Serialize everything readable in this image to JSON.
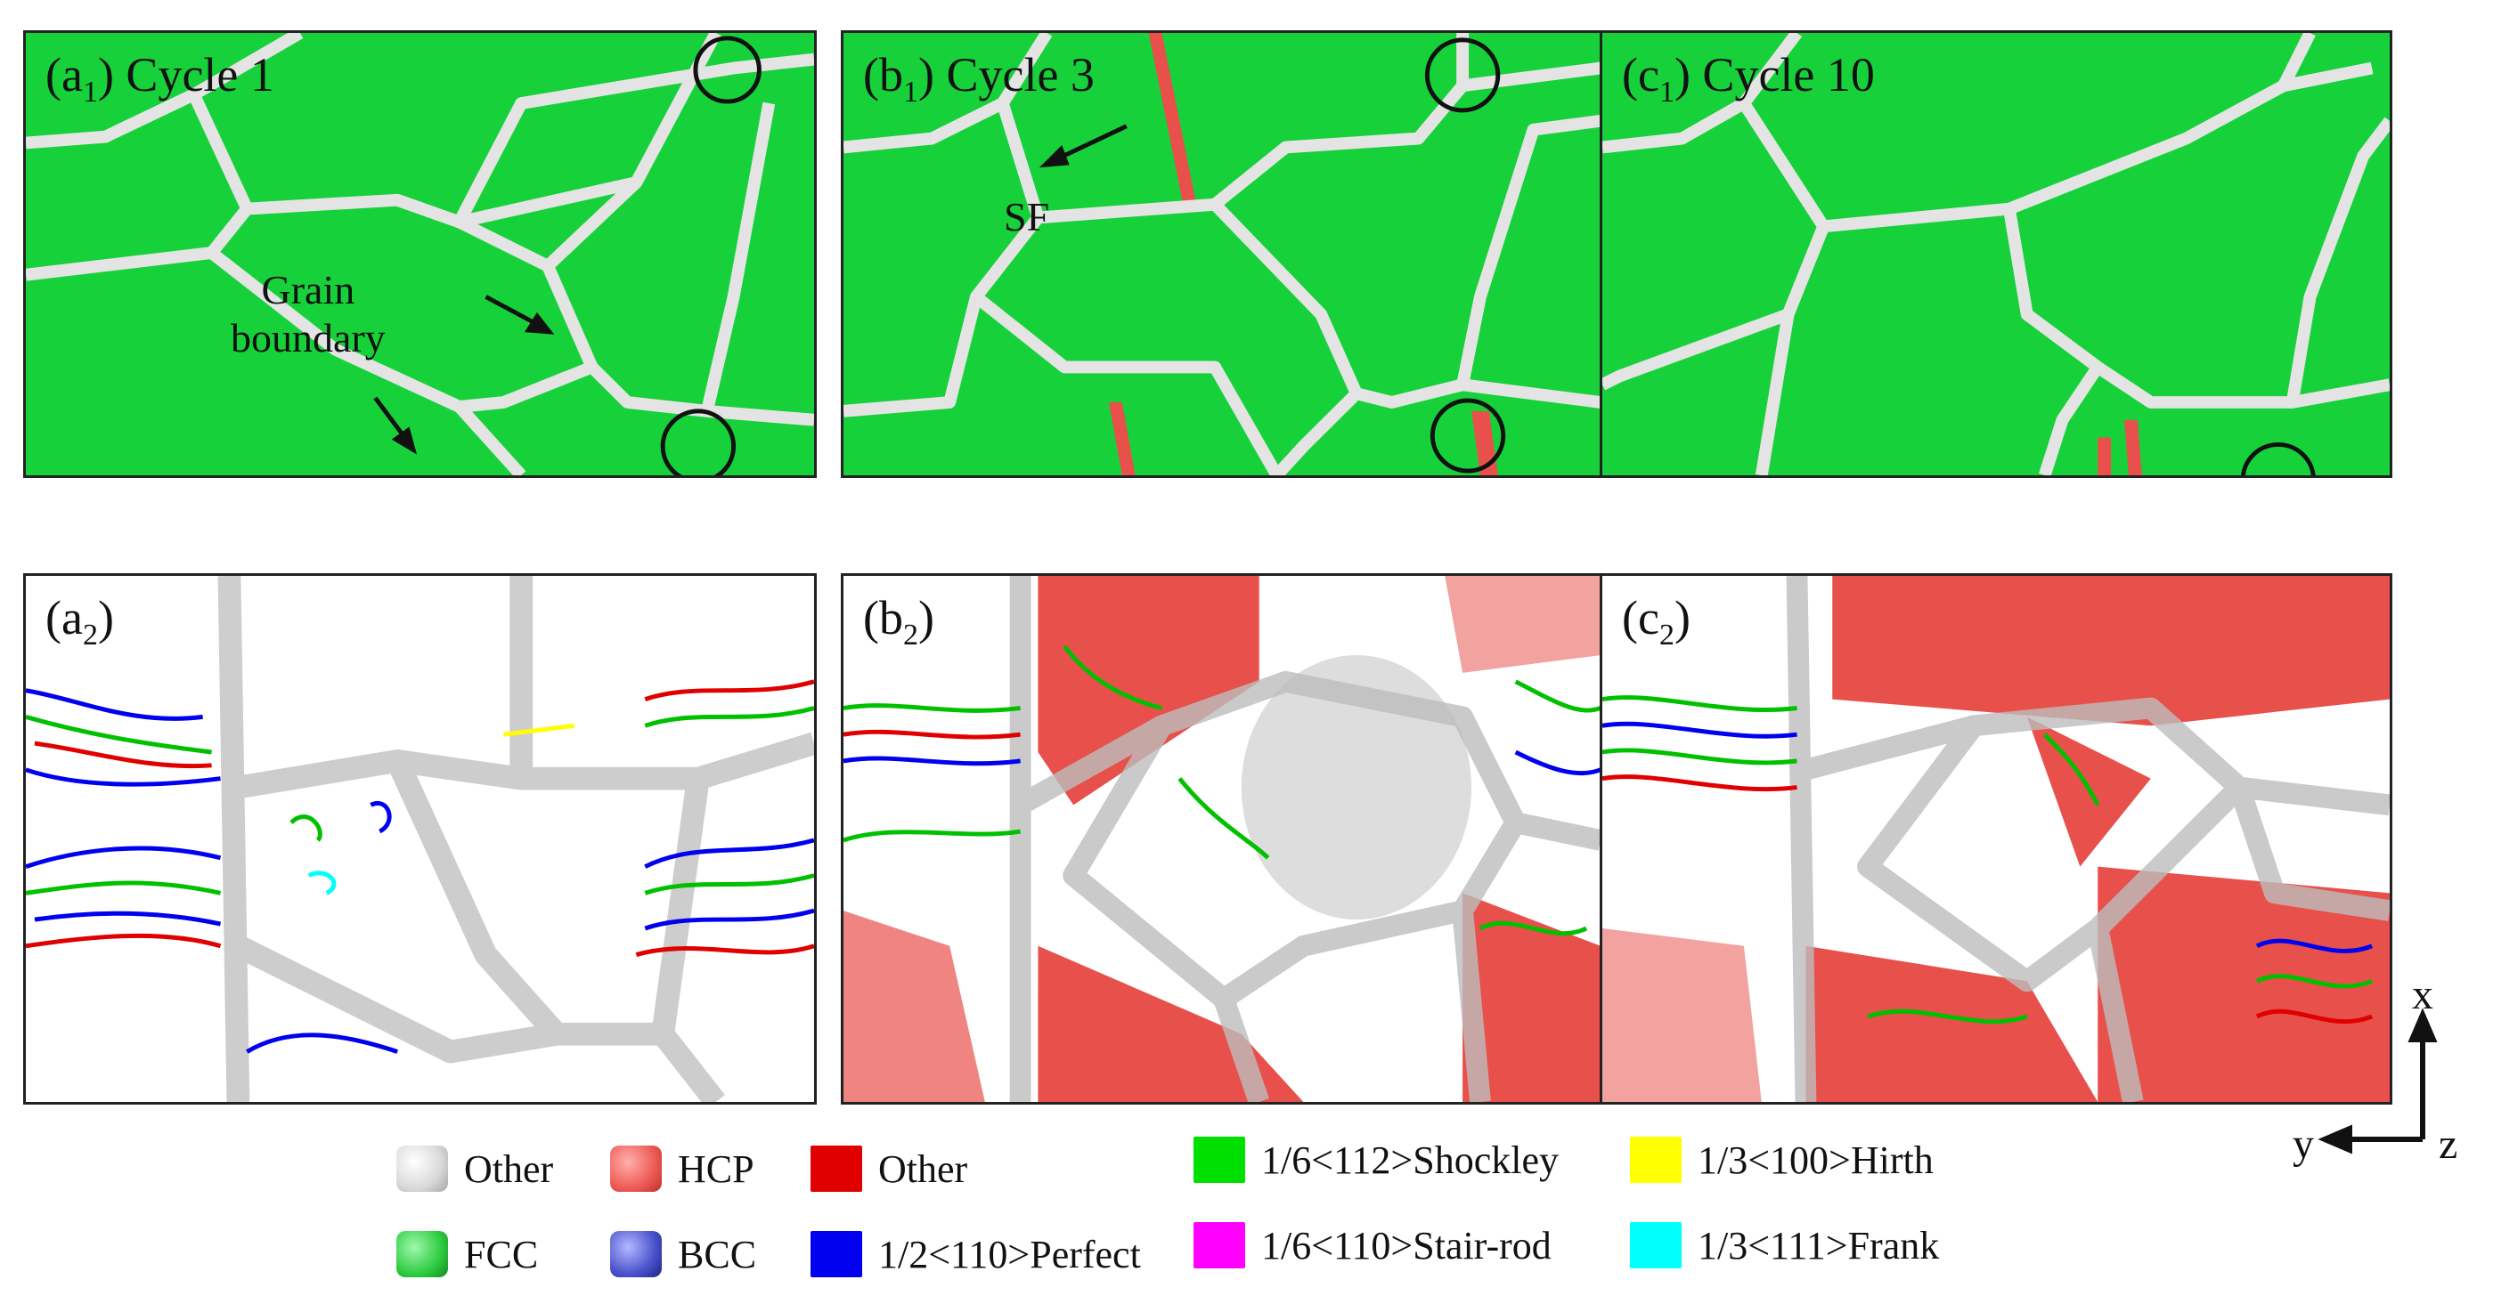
{
  "panels": {
    "a1": {
      "letter": "(a",
      "sub": "1",
      "tail": ") Cycle 1"
    },
    "b1": {
      "letter": "(b",
      "sub": "1",
      "tail": ") Cycle 3"
    },
    "c1": {
      "letter": "(c",
      "sub": "1",
      "tail": ") Cycle 10"
    },
    "a2": {
      "letter": "(a",
      "sub": "2",
      "tail": ")"
    },
    "b2": {
      "letter": "(b",
      "sub": "2",
      "tail": ")"
    },
    "c2": {
      "letter": "(c",
      "sub": "2",
      "tail": ")"
    }
  },
  "annotations": {
    "grain_boundary_line1": "Grain",
    "grain_boundary_line2": "boundary",
    "stacking_fault": "SF"
  },
  "legend": {
    "structures": [
      {
        "label": "Other",
        "color": "#d9d9d9"
      },
      {
        "label": "HCP",
        "color": "#ee5a55"
      },
      {
        "label": "FCC",
        "color": "#2ecc40"
      },
      {
        "label": "BCC",
        "color": "#4a52cc"
      }
    ],
    "dislocations": [
      {
        "label": "Other",
        "color": "#e00000"
      },
      {
        "label": "1/2<110>Perfect",
        "color": "#0000ee"
      },
      {
        "label": "1/6<112>Shockley",
        "color": "#00e000"
      },
      {
        "label": "1/6<110>Stair-rod",
        "color": "#ff00ff"
      },
      {
        "label": "1/3<100>Hirth",
        "color": "#ffff00"
      },
      {
        "label": "1/3<111>Frank",
        "color": "#00ffff"
      }
    ]
  },
  "axes": {
    "x": "x",
    "y": "y",
    "z": "z"
  },
  "colors": {
    "fcc": "#17d13a",
    "grain_boundary": "#e4e4e4",
    "hcp": "#e8504b",
    "border": "#222222"
  }
}
